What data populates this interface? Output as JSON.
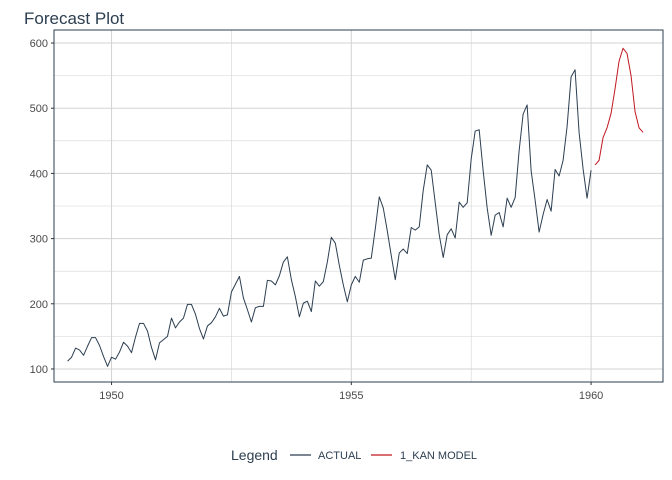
{
  "chart_data": {
    "type": "line",
    "title": "Forecast Plot",
    "xlabel": "",
    "ylabel": "",
    "xlim": [
      1948.8,
      1961.5
    ],
    "ylim": [
      80,
      620
    ],
    "x_ticks": [
      1950,
      1955,
      1960
    ],
    "x_tick_labels": [
      "1950",
      "1955",
      "1960"
    ],
    "y_ticks": [
      100,
      200,
      300,
      400,
      500,
      600
    ],
    "y_tick_labels": [
      "100",
      "200",
      "300",
      "400",
      "500",
      "600"
    ],
    "grid": true,
    "legend": {
      "title": "Legend",
      "position": "bottom",
      "entries": [
        "ACTUAL",
        "1_KAN MODEL"
      ]
    },
    "colors": {
      "actual": "#2c3e50",
      "forecast": "#c0161f",
      "axis_frame": "#2c3e50",
      "grid": "#d3d3d3"
    },
    "series": [
      {
        "name": "ACTUAL",
        "x_start": 1949.0833,
        "x_step": 0.083333,
        "values": [
          112,
          118,
          132,
          129,
          121,
          135,
          148,
          148,
          136,
          119,
          104,
          118,
          115,
          126,
          141,
          135,
          125,
          149,
          170,
          170,
          158,
          133,
          114,
          140,
          145,
          150,
          178,
          163,
          172,
          178,
          199,
          199,
          184,
          162,
          146,
          166,
          171,
          180,
          193,
          181,
          183,
          218,
          230,
          242,
          209,
          191,
          172,
          194,
          196,
          196,
          236,
          235,
          229,
          243,
          264,
          272,
          237,
          211,
          180,
          201,
          204,
          188,
          235,
          227,
          234,
          264,
          302,
          293,
          259,
          229,
          203,
          229,
          242,
          233,
          267,
          269,
          270,
          315,
          364,
          347,
          312,
          274,
          237,
          278,
          284,
          277,
          317,
          313,
          318,
          374,
          413,
          405,
          355,
          306,
          271,
          306,
          315,
          301,
          356,
          348,
          355,
          422,
          465,
          467,
          404,
          347,
          305,
          336,
          340,
          318,
          362,
          348,
          363,
          435,
          491,
          505,
          404,
          359,
          310,
          337,
          360,
          342,
          406,
          396,
          420,
          472,
          548,
          559,
          463,
          407,
          362,
          405
        ]
      },
      {
        "name": "1_KAN MODEL",
        "x_start": 1960.0833,
        "x_step": 0.083333,
        "values": [
          413,
          420,
          455,
          470,
          492,
          530,
          572,
          592,
          584,
          550,
          495,
          470,
          463
        ]
      }
    ]
  }
}
